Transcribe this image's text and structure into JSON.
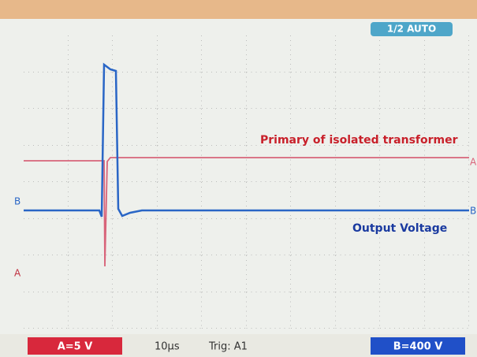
{
  "screen": {
    "mode": "1/2 AUTO",
    "channel_a_label": "A",
    "channel_b_label": "B"
  },
  "annotations": {
    "primary": "Primary of isolated transformer",
    "output": "Output Voltage"
  },
  "status_bar": {
    "channel_a": "A=5 V",
    "timebase": "10µs",
    "trigger": "Trig: A1",
    "channel_b": "B=400 V"
  }
}
